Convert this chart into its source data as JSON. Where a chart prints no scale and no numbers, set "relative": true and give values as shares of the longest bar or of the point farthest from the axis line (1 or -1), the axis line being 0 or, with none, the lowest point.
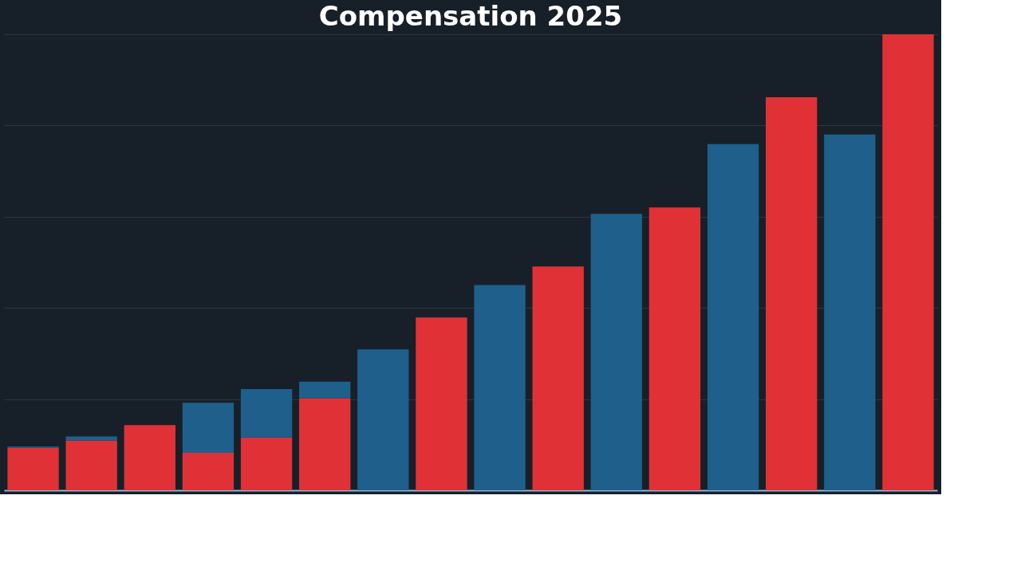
{
  "chart_data": {
    "type": "bar",
    "title": "Compensation 2025",
    "relative": true,
    "stacked": true,
    "grid": "y",
    "tick_labels": false,
    "categories": [
      null,
      null,
      null,
      null,
      null,
      null,
      null,
      null,
      null,
      null,
      null,
      null,
      null,
      null,
      null,
      null
    ],
    "series": [
      {
        "color": "#e03236",
        "values": [
          0.093,
          0.109,
          0.143,
          0.082,
          0.116,
          0.202,
          null,
          0.379,
          null,
          0.491,
          null,
          0.62,
          null,
          0.862,
          null,
          1
        ]
      },
      {
        "color": "#1f5f8b",
        "values": [
          0.003,
          0.009,
          null,
          0.11,
          0.106,
          0.036,
          0.309,
          null,
          0.45,
          null,
          0.606,
          null,
          0.759,
          null,
          0.78,
          null
        ]
      }
    ]
  }
}
